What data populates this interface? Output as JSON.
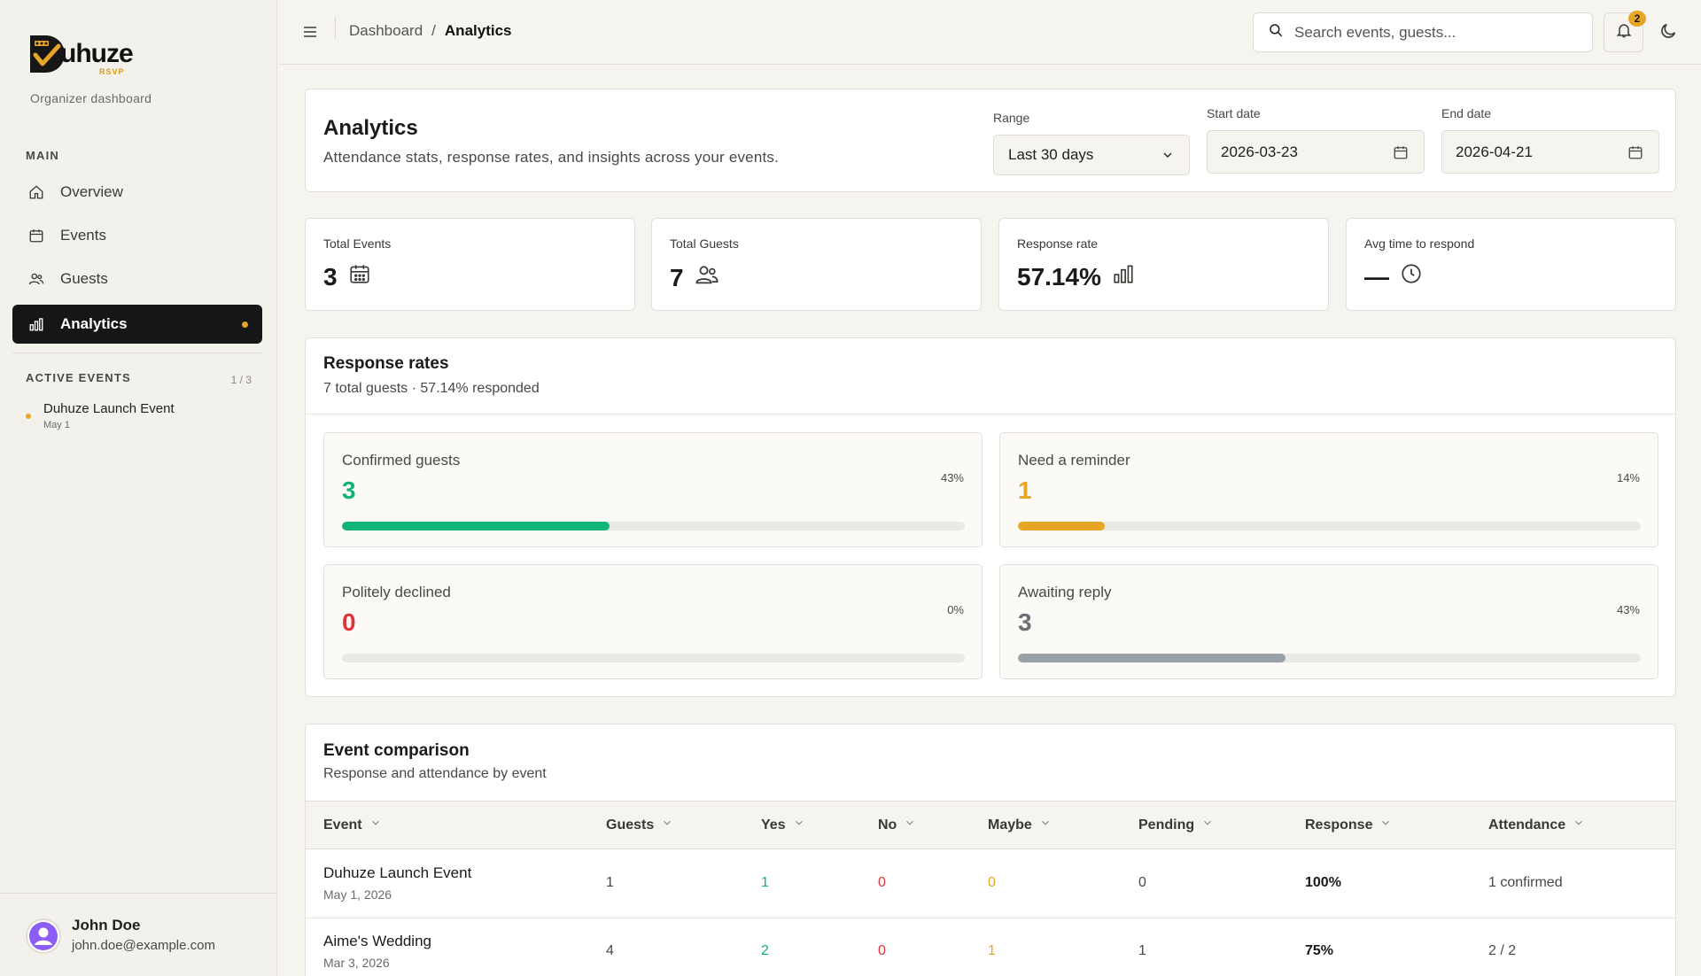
{
  "brand": {
    "name": "uhuze",
    "sub": "RSVP",
    "org_label": "Organizer dashboard"
  },
  "sidebar": {
    "main_label": "MAIN",
    "items": [
      {
        "label": "Overview",
        "icon": "home-icon"
      },
      {
        "label": "Events",
        "icon": "calendar-icon"
      },
      {
        "label": "Guests",
        "icon": "users-icon"
      },
      {
        "label": "Analytics",
        "icon": "bar-chart-icon",
        "active": true
      }
    ],
    "active_events_label": "ACTIVE EVENTS",
    "active_events_count": "1 / 3",
    "active_events": [
      {
        "name": "Duhuze Launch Event",
        "date": "May 1"
      }
    ]
  },
  "user": {
    "name": "John Doe",
    "email": "john.doe@example.com"
  },
  "topbar": {
    "breadcrumb": [
      "Dashboard",
      "/",
      "Analytics"
    ],
    "search_placeholder": "Search events, guests...",
    "notification_count": "2"
  },
  "header": {
    "title": "Analytics",
    "subtitle": "Attendance stats, response rates, and insights across your events.",
    "range_label": "Range",
    "range_value": "Last 30 days",
    "start_label": "Start date",
    "start_value": "2026-03-23",
    "end_label": "End date",
    "end_value": "2026-04-21"
  },
  "stats": [
    {
      "label": "Total Events",
      "value": "3",
      "icon": "calendar-grid-icon"
    },
    {
      "label": "Total Guests",
      "value": "7",
      "icon": "users-icon"
    },
    {
      "label": "Response rate",
      "value": "57.14%",
      "icon": "bar-chart-icon"
    },
    {
      "label": "Avg time to respond",
      "value": "—",
      "icon": "clock-icon"
    }
  ],
  "rates": {
    "title": "Response rates",
    "subtitle": "7 total guests · 57.14% responded",
    "items": [
      {
        "label": "Confirmed guests",
        "value": "3",
        "pct": "43%",
        "fraction": 0.43,
        "color": "#12b37a"
      },
      {
        "label": "Need a reminder",
        "value": "1",
        "pct": "14%",
        "fraction": 0.14,
        "color": "#e6a524"
      },
      {
        "label": "Politely declined",
        "value": "0",
        "pct": "0%",
        "fraction": 0,
        "color": "#e0343b"
      },
      {
        "label": "Awaiting reply",
        "value": "3",
        "pct": "43%",
        "fraction": 0.43,
        "color": "#6b6f76",
        "bar_color": "#9aa0a8"
      }
    ]
  },
  "comparison": {
    "title": "Event comparison",
    "subtitle": "Response and attendance by event",
    "columns": [
      "Event",
      "Guests",
      "Yes",
      "No",
      "Maybe",
      "Pending",
      "Response",
      "Attendance"
    ],
    "rows": [
      {
        "name": "Duhuze Launch Event",
        "date": "May 1, 2026",
        "guests": "1",
        "yes": "1",
        "no": "0",
        "maybe": "0",
        "pending": "0",
        "response": "100%",
        "attendance": "1 confirmed"
      },
      {
        "name": "Aime's Wedding",
        "date": "Mar 3, 2026",
        "guests": "4",
        "yes": "2",
        "no": "0",
        "maybe": "1",
        "pending": "1",
        "response": "75%",
        "attendance": "2 / 2"
      }
    ]
  },
  "colors": {
    "accent": "#e6a524",
    "yes": "#12b37a",
    "no": "#e0343b",
    "maybe": "#e6a524",
    "dark": "#161616"
  }
}
